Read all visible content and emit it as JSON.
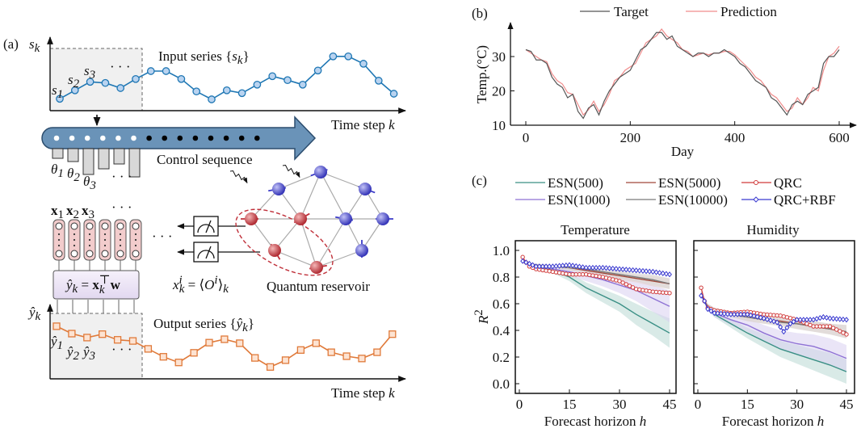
{
  "panel_a": {
    "label": "(a)",
    "input_axis_label": {
      "main": "s",
      "sub": "k"
    },
    "input_title": {
      "text": "Input series {",
      "var": "s",
      "sub": "k",
      "close": "}"
    },
    "input_point_labels": [
      {
        "main": "s",
        "sub": "1"
      },
      {
        "main": "s",
        "sub": "2"
      },
      {
        "main": "s",
        "sub": "3"
      }
    ],
    "ellipsis": "· · ·",
    "time_axis_label": {
      "text": "Time step ",
      "var": "k"
    },
    "control_label": "Control sequence",
    "theta_labels": [
      {
        "main": "θ",
        "sub": "1"
      },
      {
        "main": "θ",
        "sub": "2"
      },
      {
        "main": "θ",
        "sub": "3"
      }
    ],
    "feature_labels": [
      {
        "main": "x",
        "sub": "1"
      },
      {
        "main": "x",
        "sub": "2"
      },
      {
        "main": "x",
        "sub": "3"
      }
    ],
    "readout_equation": {
      "lhs": "ŷ",
      "lhs_sub": "k",
      "eq": " = ",
      "x": "x",
      "x_sub": "k",
      "x_sup": "⊤",
      "w": "w"
    },
    "observable_equation": {
      "x": "x",
      "sup": "i",
      "sub": "k",
      "eq": " = ⟨",
      "O": "O",
      "O_sup": "i",
      "close": "⟩",
      "close_sub": "k"
    },
    "reservoir_label": "Quantum reservoir",
    "output_axis_label": {
      "main": "ŷ",
      "sub": "k"
    },
    "output_title": {
      "text": "Output series {",
      "var": "ŷ",
      "sub": "k",
      "close": "}"
    },
    "output_point_labels": [
      {
        "main": "ŷ",
        "sub": "1"
      },
      {
        "main": "ŷ",
        "sub": "2"
      },
      {
        "main": "ŷ",
        "sub": "3"
      }
    ],
    "input_series_values": [
      2.1,
      3.6,
      5.1,
      4.9,
      4.0,
      5.6,
      7.0,
      7.0,
      5.6,
      3.4,
      2.0,
      3.6,
      3.1,
      4.6,
      6.1,
      5.4,
      4.6,
      7.1,
      9.6,
      9.6,
      8.3,
      5.3,
      3.0
    ],
    "output_series_values": [
      9.3,
      8.0,
      7.3,
      7.9,
      6.9,
      6.7,
      5.3,
      3.9,
      2.9,
      4.6,
      6.4,
      7.0,
      6.3,
      3.7,
      2.1,
      3.3,
      5.1,
      6.3,
      4.7,
      4.0,
      3.6,
      4.7,
      7.9
    ],
    "control_values": [
      1.2,
      1.6,
      3.2,
      2.5,
      1.9,
      3.5
    ],
    "colors": {
      "input": "#1f77b4",
      "input_fill": "#b9d3f0",
      "output": "#e07a3a",
      "output_fill": "#fde3d2",
      "arrow": "#6a93b8",
      "feature": "#f2cccc",
      "readout": "#ece4f6",
      "spin_red": "#c0303a",
      "spin_blue": "#3a3ac8"
    }
  },
  "chart_data": [
    {
      "panel_label": "(b)",
      "type": "line",
      "xlabel": "Day",
      "ylabel": "Temp.(°C)",
      "xlim": [
        0,
        600
      ],
      "ylim": [
        10,
        38
      ],
      "xticks": [
        0,
        200,
        400,
        600
      ],
      "yticks": [
        10,
        20,
        30
      ],
      "legend_placement": "top",
      "x": [
        0,
        10,
        20,
        30,
        40,
        50,
        60,
        70,
        80,
        90,
        100,
        110,
        120,
        130,
        140,
        150,
        160,
        170,
        180,
        190,
        200,
        210,
        220,
        230,
        240,
        250,
        260,
        270,
        280,
        290,
        300,
        310,
        320,
        330,
        340,
        350,
        360,
        370,
        380,
        390,
        400,
        410,
        420,
        430,
        440,
        450,
        460,
        470,
        480,
        490,
        500,
        510,
        520,
        530,
        540,
        550,
        560,
        570,
        580,
        590,
        600
      ],
      "series": [
        {
          "name": "Target",
          "color": "#555555",
          "values": [
            32,
            31.5,
            29,
            29,
            28,
            24,
            22,
            21,
            18,
            19,
            14,
            12,
            15,
            16,
            13,
            17,
            20,
            22,
            24,
            25,
            26,
            29,
            32,
            33,
            35,
            37,
            37,
            35,
            36,
            33,
            32,
            31,
            30,
            31,
            31,
            30,
            31,
            31,
            32,
            31,
            30,
            28,
            27,
            25,
            23,
            22,
            21,
            18,
            17,
            15,
            13,
            16,
            17,
            16,
            19,
            20,
            21,
            28,
            30,
            30,
            32
          ]
        },
        {
          "name": "Prediction",
          "color": "#f08c8c",
          "values": [
            32,
            31,
            30,
            29,
            28.5,
            25,
            23,
            22,
            19.5,
            19,
            16,
            13,
            14.5,
            17,
            14,
            16,
            19,
            23,
            24,
            26,
            27,
            28,
            31,
            34,
            35,
            36,
            38,
            36,
            35,
            34,
            32,
            31.5,
            30,
            30.5,
            31,
            30.5,
            31,
            31,
            31.5,
            31.5,
            30.5,
            29,
            27.5,
            26,
            24,
            23,
            21,
            19,
            18,
            16,
            14,
            15,
            18,
            16,
            18,
            21,
            20,
            26,
            30,
            31,
            33
          ]
        }
      ]
    },
    {
      "panel_label": "(c)",
      "title": "Temperature",
      "type": "line",
      "xlabel": "Forecast horizon ",
      "xlabel_var": "h",
      "ylabel": "R",
      "ylabel_sup": "2",
      "xlim": [
        0,
        45
      ],
      "ylim": [
        -0.06,
        1.08
      ],
      "xticks": [
        0,
        15,
        30,
        45
      ],
      "yticks": [
        0.0,
        0.2,
        0.4,
        0.6,
        0.8,
        1.0
      ],
      "legend_placement": "top",
      "h": [
        1,
        2,
        3,
        5,
        10,
        15,
        20,
        25,
        30,
        35,
        40,
        45
      ],
      "series": [
        {
          "name": "ESN(500)",
          "color": "#3a8f85",
          "band_color": "#b9d8d3",
          "r2": [
            0.93,
            0.91,
            0.9,
            0.88,
            0.85,
            0.8,
            0.72,
            0.66,
            0.6,
            0.52,
            0.45,
            0.38
          ],
          "spread": [
            0.005,
            0.01,
            0.01,
            0.01,
            0.02,
            0.03,
            0.04,
            0.05,
            0.06,
            0.08,
            0.09,
            0.11
          ]
        },
        {
          "name": "ESN(1000)",
          "color": "#8e72d4",
          "band_color": "#d8d0f0",
          "r2": [
            0.93,
            0.91,
            0.9,
            0.88,
            0.86,
            0.84,
            0.81,
            0.78,
            0.74,
            0.7,
            0.64,
            0.58
          ],
          "spread": [
            0.005,
            0.01,
            0.01,
            0.01,
            0.02,
            0.03,
            0.04,
            0.05,
            0.06,
            0.08,
            0.1,
            0.12
          ]
        },
        {
          "name": "ESN(5000)",
          "color": "#a0483a",
          "band_color": "#e6cfc9",
          "r2": [
            0.93,
            0.91,
            0.9,
            0.89,
            0.88,
            0.87,
            0.85,
            0.83,
            0.81,
            0.79,
            0.77,
            0.75
          ],
          "spread": [
            0.005,
            0.01,
            0.01,
            0.01,
            0.01,
            0.02,
            0.02,
            0.02,
            0.03,
            0.03,
            0.04,
            0.04
          ]
        },
        {
          "name": "ESN(10000)",
          "color": "#7a7a7a",
          "band_color": "#d6d6d6",
          "r2": [
            0.93,
            0.91,
            0.9,
            0.89,
            0.88,
            0.87,
            0.86,
            0.84,
            0.82,
            0.8,
            0.78,
            0.75
          ],
          "spread": [
            0.005,
            0.01,
            0.01,
            0.01,
            0.01,
            0.02,
            0.02,
            0.02,
            0.03,
            0.03,
            0.04,
            0.04
          ]
        },
        {
          "name": "QRC",
          "color": "#d03a3a",
          "marker": "circle",
          "r2": [
            0.95,
            0.91,
            0.88,
            0.86,
            0.84,
            0.82,
            0.82,
            0.8,
            0.77,
            0.71,
            0.69,
            0.68
          ]
        },
        {
          "name": "QRC+RBF",
          "color": "#3a3ad0",
          "marker": "diamond",
          "r2": [
            0.92,
            0.91,
            0.9,
            0.88,
            0.88,
            0.89,
            0.87,
            0.87,
            0.86,
            0.85,
            0.84,
            0.82
          ]
        }
      ]
    },
    {
      "title": "Humidity",
      "type": "line",
      "xlabel": "Forecast horizon ",
      "xlabel_var": "h",
      "xlim": [
        0,
        45
      ],
      "ylim": [
        -0.06,
        1.08
      ],
      "xticks": [
        0,
        15,
        30,
        45
      ],
      "h": [
        1,
        2,
        3,
        5,
        10,
        15,
        20,
        25,
        30,
        35,
        40,
        45
      ],
      "series": [
        {
          "name": "ESN(500)",
          "color": "#3a8f85",
          "band_color": "#b9d8d3",
          "r2": [
            0.68,
            0.62,
            0.57,
            0.52,
            0.45,
            0.38,
            0.32,
            0.26,
            0.22,
            0.18,
            0.14,
            0.09
          ],
          "spread": [
            0.02,
            0.02,
            0.02,
            0.02,
            0.03,
            0.04,
            0.05,
            0.06,
            0.07,
            0.08,
            0.09,
            0.09
          ]
        },
        {
          "name": "ESN(1000)",
          "color": "#8e72d4",
          "band_color": "#d8d0f0",
          "r2": [
            0.68,
            0.62,
            0.58,
            0.53,
            0.48,
            0.44,
            0.38,
            0.33,
            0.3,
            0.28,
            0.24,
            0.19
          ],
          "spread": [
            0.02,
            0.02,
            0.02,
            0.03,
            0.04,
            0.05,
            0.06,
            0.07,
            0.08,
            0.09,
            0.1,
            0.1
          ]
        },
        {
          "name": "ESN(5000)",
          "color": "#a0483a",
          "band_color": "#e6cfc9",
          "r2": [
            0.68,
            0.62,
            0.58,
            0.55,
            0.52,
            0.5,
            0.48,
            0.47,
            0.45,
            0.43,
            0.41,
            0.39
          ],
          "spread": [
            0.02,
            0.02,
            0.02,
            0.02,
            0.02,
            0.03,
            0.03,
            0.03,
            0.04,
            0.04,
            0.04,
            0.05
          ]
        },
        {
          "name": "ESN(10000)",
          "color": "#7a7a7a",
          "band_color": "#d6d6d6",
          "r2": [
            0.68,
            0.62,
            0.58,
            0.55,
            0.52,
            0.5,
            0.48,
            0.46,
            0.45,
            0.43,
            0.41,
            0.39
          ],
          "spread": [
            0.02,
            0.02,
            0.02,
            0.02,
            0.02,
            0.03,
            0.03,
            0.03,
            0.04,
            0.04,
            0.04,
            0.05
          ]
        },
        {
          "name": "QRC",
          "color": "#d03a3a",
          "marker": "circle",
          "r2": [
            0.72,
            0.62,
            0.57,
            0.55,
            0.53,
            0.54,
            0.52,
            0.51,
            0.48,
            0.43,
            0.43,
            0.37
          ]
        },
        {
          "name": "QRC+RBF",
          "color": "#3a3ad0",
          "marker": "diamond",
          "h": [
            1,
            2,
            3,
            5,
            10,
            15,
            20,
            24,
            26,
            28,
            30,
            35,
            38,
            40,
            45
          ],
          "r2": [
            0.66,
            0.62,
            0.56,
            0.53,
            0.52,
            0.52,
            0.49,
            0.46,
            0.39,
            0.45,
            0.48,
            0.48,
            0.5,
            0.49,
            0.48
          ]
        }
      ]
    }
  ]
}
